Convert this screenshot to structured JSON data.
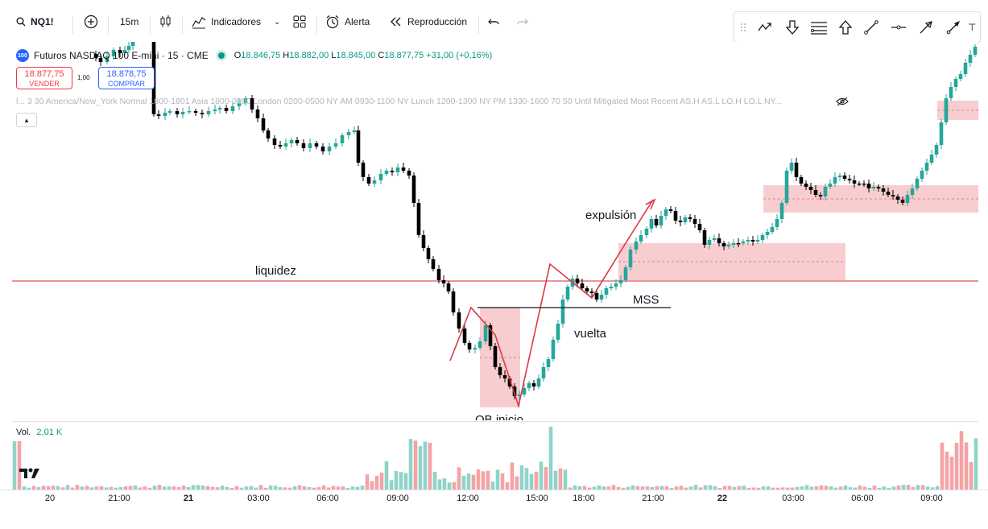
{
  "toolbar": {
    "symbol": "NQ1!",
    "interval": "15m",
    "indicators_label": "Indicadores",
    "alert_label": "Alerta",
    "replay_label": "Reproducción"
  },
  "legend": {
    "logo_text": "100",
    "title": "Futuros NASDAQ 100 E-mini · 15 · CME",
    "open_label": "O",
    "open": "18.846,75",
    "high_label": "H",
    "high": "18.882,00",
    "low_label": "L",
    "low": "18.845,00",
    "close_label": "C",
    "close": "18.877,75",
    "change": "+31,00 (+0,16%)"
  },
  "trade": {
    "sell_price": "18.877,75",
    "sell_label": "VENDER",
    "spread": "1,00",
    "buy_price": "18.878,75",
    "buy_label": "COMPRAR"
  },
  "indicator_line": "l... 3 30 America/New_York Normal 1800-1801 Asia 1800-0000 London 0200-0500 NY AM 0930-1100 NY Lunch 1200-1300 NY PM 1330-1600 70 50 Until Mitigated Most Recent AS.H AS.L LO.H LO.L NY...",
  "annotations": {
    "liquidity": "liquidez",
    "expulsion": "expulsión",
    "mss": "MSS",
    "return": "vuelta",
    "ob_start": "OB inicio"
  },
  "volume": {
    "label": "Vol.",
    "value": "2,01 K"
  },
  "time_axis": [
    "20",
    "21:00",
    "21",
    "03:00",
    "06:00",
    "09:00",
    "12:00",
    "15:00",
    "18:00",
    "21:00",
    "22",
    "03:00",
    "06:00",
    "09:00"
  ],
  "colors": {
    "up": "#26a69a",
    "down": "#000000",
    "volume_up": "#8fd3c9",
    "volume_down": "#f4a3a6",
    "zone": "#f7c4c8",
    "liquidity_line": "#e0525d",
    "annotation_line": "#d63a45",
    "accent": "#2962ff"
  }
}
